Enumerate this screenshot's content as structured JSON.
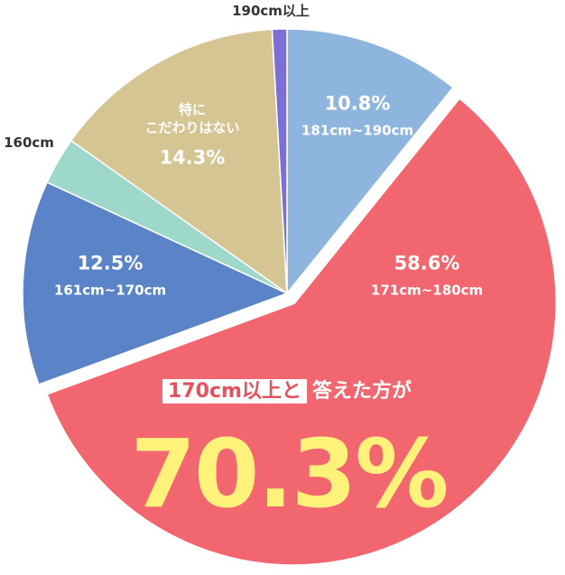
{
  "chart_data": {
    "type": "pie",
    "categories": [
      "181cm~190cm",
      "171cm~180cm",
      "161cm~170cm",
      "160cm",
      "特に\nこだわりはない",
      "190cm以上"
    ],
    "values": [
      10.8,
      58.6,
      12.5,
      2.9,
      14.3,
      0.9
    ],
    "value_labels": [
      "10.8%",
      "58.6%",
      "12.5%",
      null,
      "14.3%",
      null
    ],
    "colors": [
      "#8db5dd",
      "#f26670",
      "#5b84c8",
      "#9ed8cb",
      "#d5c593",
      "#7b6fd6"
    ],
    "exploded": [
      false,
      true,
      false,
      false,
      false,
      false
    ],
    "annotations": {
      "highlight": "170cm以上と",
      "text": "答えた方が",
      "total": "70.3%"
    }
  }
}
